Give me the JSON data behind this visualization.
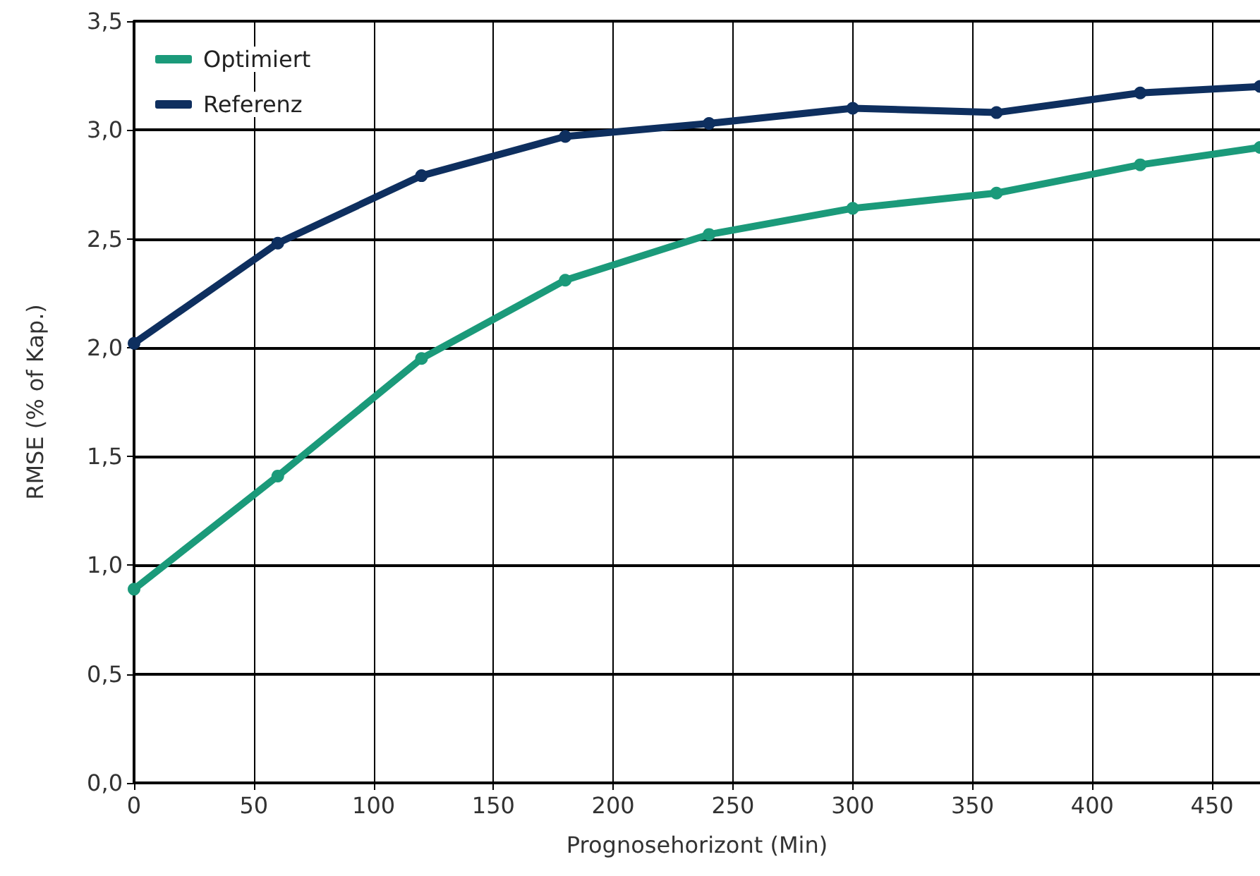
{
  "chart_data": {
    "type": "line",
    "xlabel": "Prognosehorizont (Min)",
    "ylabel": "RMSE (% of Kap.)",
    "x": [
      0,
      60,
      120,
      180,
      240,
      300,
      360,
      420,
      470
    ],
    "series": [
      {
        "name": "Optimiert",
        "color": "#1b9a7a",
        "values": [
          0.89,
          1.41,
          1.95,
          2.31,
          2.52,
          2.64,
          2.71,
          2.84,
          2.92
        ]
      },
      {
        "name": "Referenz",
        "color": "#0e2f5f",
        "values": [
          2.02,
          2.48,
          2.79,
          2.97,
          3.03,
          3.1,
          3.08,
          3.17,
          3.2
        ]
      }
    ],
    "xlim": [
      0,
      470
    ],
    "xticks": [
      0,
      50,
      100,
      150,
      200,
      250,
      300,
      350,
      400,
      450
    ],
    "ylim": [
      0,
      3.5
    ],
    "yticks": [
      {
        "value": 0,
        "label": "0,0"
      },
      {
        "value": 0.5,
        "label": "0,5"
      },
      {
        "value": 1,
        "label": "1,0"
      },
      {
        "value": 1.5,
        "label": "1,5"
      },
      {
        "value": 2,
        "label": "2,0"
      },
      {
        "value": 2.5,
        "label": "2,5"
      },
      {
        "value": 3,
        "label": "3,0"
      },
      {
        "value": 3.5,
        "label": "3,5"
      }
    ],
    "grid": true,
    "legend": "top left",
    "marker": "circle",
    "line_style": "solid"
  }
}
